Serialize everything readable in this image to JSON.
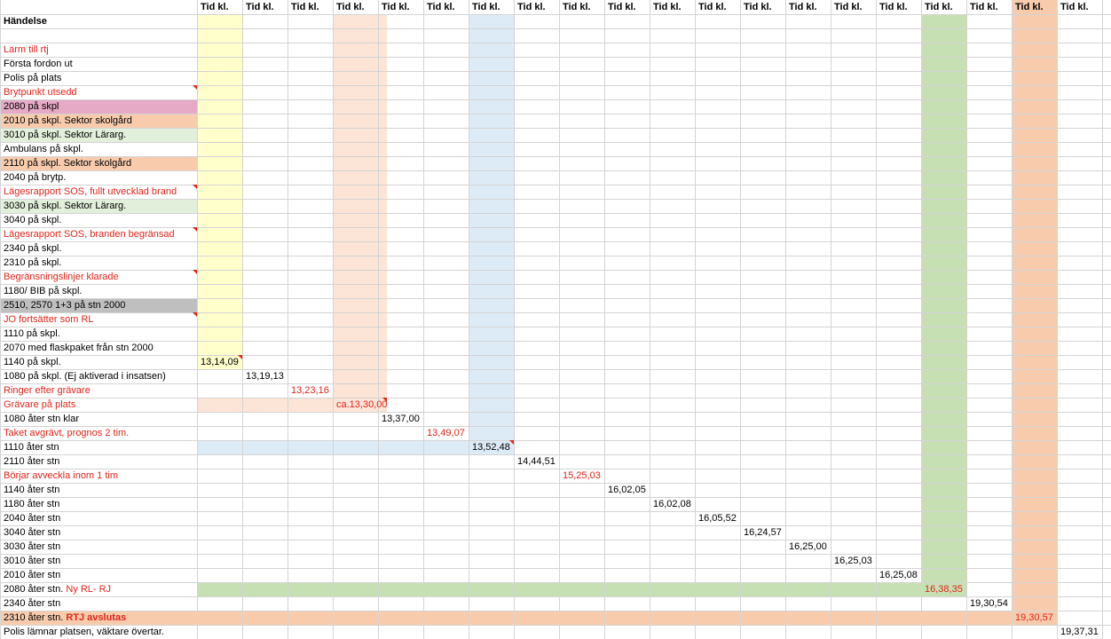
{
  "header": {
    "col_a": "Händelse",
    "time_cols": [
      "Tid kl.",
      "Tid kl.",
      "Tid kl.",
      "Tid kl.",
      "Tid kl.",
      "Tid kl.",
      "Tid kl.",
      "Tid kl.",
      "Tid kl.",
      "Tid kl.",
      "Tid kl.",
      "Tid kl.",
      "Tid kl.",
      "Tid kl.",
      "Tid kl.",
      "Tid kl.",
      "Tid kl.",
      "Tid kl.",
      "Tid kl.",
      "Tid kl."
    ]
  },
  "colors": {
    "grid": "#d4d4d4",
    "red_text": "#e0261c",
    "pink": "#e6a9c6",
    "orange": "#f8cbad",
    "green_light": "#e2efda",
    "green": "#c6e0b4",
    "gray": "#bfbfbf",
    "yellow": "#ffffcc",
    "peach": "#fce4d6",
    "blue": "#ddebf7"
  },
  "rows": [
    {
      "event": "Larm till rtj",
      "red": true
    },
    {
      "event": "Första fordon ut"
    },
    {
      "event": "Polis på plats"
    },
    {
      "event": "Brytpunkt utsedd",
      "red": true,
      "comment": true
    },
    {
      "event": "2080 på skpl",
      "fill": "pink"
    },
    {
      "event": "2010 på skpl. Sektor skolgård",
      "fill": "orange"
    },
    {
      "event": "3010 på skpl. Sektor Lärarg.",
      "fill": "green_light"
    },
    {
      "event": "Ambulans på skpl."
    },
    {
      "event": "2110 på skpl. Sektor skolgård",
      "fill": "orange"
    },
    {
      "event": "2040 på brytp."
    },
    {
      "event": "Lägesrapport SOS, fullt utvecklad brand",
      "red": true,
      "comment": true
    },
    {
      "event": "3030 på skpl. Sektor Lärarg.",
      "fill": "green_light"
    },
    {
      "event": "3040 på skpl."
    },
    {
      "event": "Lägesrapport SOS, branden begränsad",
      "red": true,
      "comment": true
    },
    {
      "event": "2340 på skpl."
    },
    {
      "event": "2310 på skpl."
    },
    {
      "event": "Begränsningslinjer klarade",
      "red": true,
      "comment": true
    },
    {
      "event": "1180/ BIB på skpl."
    },
    {
      "event": "2510, 2570 1+3 på stn 2000",
      "fill": "gray"
    },
    {
      "event": "JO fortsätter som RL",
      "red": true,
      "comment": true
    },
    {
      "event": "1110 på skpl."
    },
    {
      "event": "2070 med flaskpaket från stn 2000"
    },
    {
      "event": "1140 på skpl.",
      "time": "13,14,09",
      "col": 0
    },
    {
      "event": "1080 på skpl. (Ej aktiverad i insatsen)",
      "time": "13,19,13",
      "col": 1
    },
    {
      "event": "Ringer efter grävare",
      "red": true,
      "time": "13,23,16",
      "col": 2,
      "time_red": true
    },
    {
      "event": "Grävare på plats",
      "red": true,
      "time": "ca.13,30,00",
      "col": 3,
      "time_red": true
    },
    {
      "event": "1080 åter stn klar",
      "time": "13,37,00",
      "col": 4
    },
    {
      "event": "Taket avgrävt, prognos 2 tim.",
      "red": true,
      "time": "13,49,07",
      "col": 5,
      "time_red": true
    },
    {
      "event": "1110 åter stn",
      "time": "13,52,48",
      "col": 6
    },
    {
      "event": "2110 åter stn",
      "time": "14,44,51",
      "col": 7
    },
    {
      "event": "Börjar avveckla inom 1 tim",
      "red": true,
      "time": "15,25,03",
      "col": 8,
      "time_red": true
    },
    {
      "event": "1140 åter stn",
      "time": "16,02,05",
      "col": 9
    },
    {
      "event": "1180 åter stn",
      "time": "16,02,08",
      "col": 10
    },
    {
      "event": "2040 åter stn",
      "time": "16,05,52",
      "col": 11
    },
    {
      "event": "3040 åter stn",
      "time": "16,24,57",
      "col": 12
    },
    {
      "event": "3030 åter stn",
      "time": "16,25,00",
      "col": 13
    },
    {
      "event": "3010 åter stn",
      "time": "16,25,03",
      "col": 14
    },
    {
      "event": "2010 åter stn",
      "time": "16,25,08",
      "col": 15
    },
    {
      "event": "2080 åter stn. ",
      "event_suffix": "Ny RL- RJ",
      "time": "16,38,35",
      "col": 16,
      "time_red": true
    },
    {
      "event": "2340 åter stn",
      "time": "19,30,54",
      "col": 17
    },
    {
      "event": "2310 åter stn. ",
      "event_suffix": "RTJ avslutas",
      "suffix_bold": true,
      "time": "19,30,57",
      "col": 18,
      "time_red": true
    },
    {
      "event": "Polis lämnar platsen, väktare övertar.",
      "time": "19,37,31",
      "col": 19
    }
  ]
}
